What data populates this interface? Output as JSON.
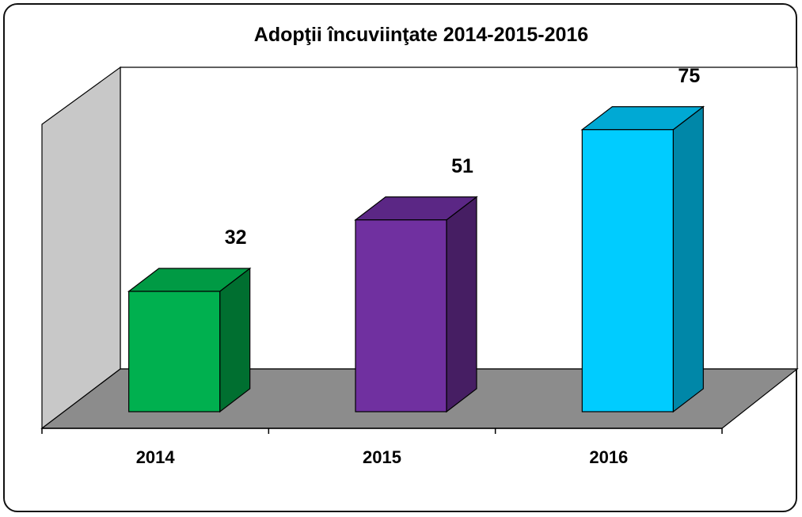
{
  "chart_data": {
    "type": "bar",
    "style": "3d",
    "title": "Adopţii încuviinţate 2014-2015-2016",
    "categories": [
      "2014",
      "2015",
      "2016"
    ],
    "values": [
      32,
      51,
      75
    ],
    "colors": [
      {
        "front": "#00b04f",
        "side": "#006f30",
        "top": "#009a44"
      },
      {
        "front": "#7030a0",
        "side": "#461e63",
        "top": "#5b2785"
      },
      {
        "front": "#00ccff",
        "side": "#0087a8",
        "top": "#00a9d4"
      }
    ],
    "wall_color": "#c8c8c8",
    "floor_color": "#8c8c8c",
    "legend": "none",
    "grid": false
  }
}
